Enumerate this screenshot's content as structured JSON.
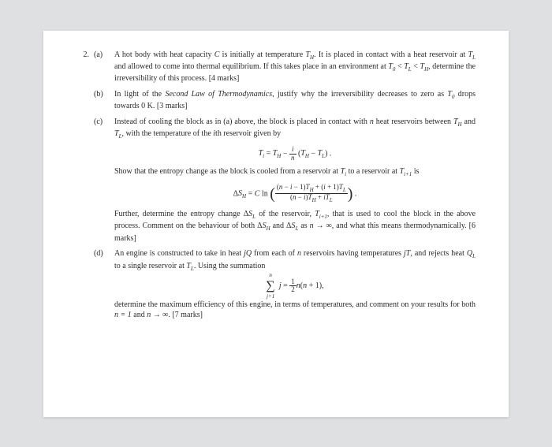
{
  "problem_number": "2.",
  "parts": {
    "a": {
      "label": "(a)",
      "text1": "A hot body with heat capacity ",
      "var_C": "C",
      "text2": " is initially at temperature ",
      "var_TH": "T",
      "sub_H": "H",
      "text3": ". It is placed in contact with a heat reservoir at ",
      "var_TL": "T",
      "sub_L": "L",
      "text4": " and allowed to come into thermal equilibrium. If this takes place in an environment at ",
      "ineq": "T₀ < T_L < T_H",
      "var_T0": "T",
      "sub_0": "0",
      "text5": ", determine the irreversibility of this process. [4 marks]"
    },
    "b": {
      "label": "(b)",
      "text1": "In light of the ",
      "law": "Second Law of Thermodynamics",
      "text2": ", justify why the irreversibility decreases to zero as ",
      "var_T0": "T",
      "sub_0": "0",
      "text3": " drops towards 0 K. [3 marks]"
    },
    "c": {
      "label": "(c)",
      "text1": "Instead of cooling the block as in (a) above, the block is placed in contact with ",
      "var_n": "n",
      "text2": " heat reservoirs between ",
      "text3": " and ",
      "text4": ", with the temperature of the ",
      "var_i": "i",
      "text5": "th reservoir given by",
      "eq1_lhs": "Tᵢ = T_H − ",
      "eq1_frac_num": "i",
      "eq1_frac_den": "n",
      "eq1_rhs": " (T_H − T_L) .",
      "text6": "Show that the entropy change as the block is cooled from a reservoir at ",
      "var_Ti": "Tᵢ",
      "text7": " to a reservoir at ",
      "var_Ti1": "Tᵢ₊₁",
      "text8": " is",
      "eq2_lhs": "ΔS_H = C ln",
      "eq2_frac_num": "(n − i − 1)T_H + (i + 1)T_L",
      "eq2_frac_den": "(n − i)T_H + iT_L",
      "eq2_end": ".",
      "text9": "Further, determine the entropy change Δ",
      "var_SL": "S",
      "text10": " of the reservoir, ",
      "text11": ", that is used to cool the block in the above process. Comment on the behaviour of both Δ",
      "var_SH": "S",
      "text12": " and Δ",
      "text13": " as ",
      "lim": "n → ∞",
      "text14": ", and what this means thermodynamically. [6 marks]"
    },
    "d": {
      "label": "(d)",
      "text1": "An engine is constructed to take in heat ",
      "var_jQ": "jQ",
      "text2": " from each of ",
      "text3": " reservoirs having temperatures ",
      "var_jT": "jT",
      "text4": ", and rejects heat ",
      "var_QL": "Q",
      "text5": " to a single reservoir at ",
      "text6": ". Using the summation",
      "sum_top": "n",
      "sum_bot": "j=1",
      "sum_body": "j = ",
      "sum_frac_num": "1",
      "sum_frac_den": "2",
      "sum_rhs": "n(n + 1),",
      "text7": "determine the maximum efficiency of this engine, in terms of temperatures, and comment on your results for both ",
      "case1": "n = 1",
      "text8": " and ",
      "case2": "n → ∞",
      "text9": ". [7 marks]"
    }
  }
}
